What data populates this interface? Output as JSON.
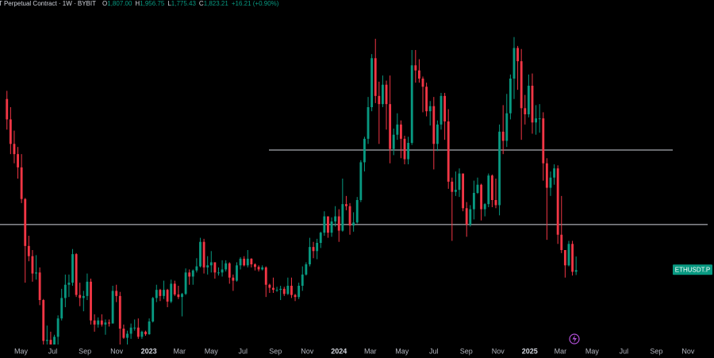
{
  "chart_data": {
    "type": "candlestick",
    "title": "T Perpetual Contract · 1W · BYBIT",
    "legend_items": [
      {
        "key": "O",
        "label": "1,807.00"
      },
      {
        "key": "H",
        "label": "1,956.75"
      },
      {
        "key": "L",
        "label": "1,775.43"
      },
      {
        "key": "C",
        "label": "1,823.21"
      }
    ],
    "change_label": "+16.21 (+0.90%)",
    "symbol_label": "ETHUSDT.P",
    "up_color": "#089981",
    "down_color": "#f23645",
    "xlim": [
      -1.9,
      193.8
    ],
    "xticks": [
      {
        "value": 3.86,
        "label": "May"
      },
      {
        "value": 12.57,
        "label": "Jul"
      },
      {
        "value": 21.4,
        "label": "Sep"
      },
      {
        "value": 30.1,
        "label": "Nov"
      },
      {
        "value": 38.9,
        "label": "2023"
      },
      {
        "value": 47.3,
        "label": "Mar"
      },
      {
        "value": 56,
        "label": "May"
      },
      {
        "value": 64.7,
        "label": "Jul"
      },
      {
        "value": 73.6,
        "label": "Sep"
      },
      {
        "value": 82.3,
        "label": "Nov"
      },
      {
        "value": 91,
        "label": "2024"
      },
      {
        "value": 99.6,
        "label": "Mar"
      },
      {
        "value": 108.3,
        "label": "May"
      },
      {
        "value": 117,
        "label": "Jul"
      },
      {
        "value": 125.9,
        "label": "Sep"
      },
      {
        "value": 134.6,
        "label": "Nov"
      },
      {
        "value": 143.3,
        "label": "2025"
      },
      {
        "value": 151.7,
        "label": "Mar"
      },
      {
        "value": 160.4,
        "label": "May"
      },
      {
        "value": 169.1,
        "label": "Jul"
      },
      {
        "value": 178,
        "label": "Sep"
      },
      {
        "value": 186.7,
        "label": "Nov"
      }
    ],
    "ylim": [
      1110,
      4470
    ],
    "hlines": [
      3000,
      2270
    ],
    "open": [
      3500,
      3300,
      3060,
      2960,
      2830,
      2520,
      2060,
      1960,
      1790,
      1800,
      1530,
      1130,
      1140,
      1070,
      1170,
      1350,
      1550,
      1680,
      1700,
      1980,
      1580,
      1550,
      1570,
      1710,
      1330,
      1290,
      1330,
      1290,
      1310,
      1300,
      1620,
      1570,
      1250,
      1160,
      1200,
      1260,
      1260,
      1170,
      1220,
      1195,
      1320,
      1550,
      1630,
      1570,
      1630,
      1515,
      1690,
      1585,
      1560,
      1590,
      1800,
      1760,
      1820,
      1860,
      2100,
      1850,
      1870,
      1900,
      1800,
      1800,
      1830,
      1890,
      1750,
      1720,
      1870,
      1935,
      1870,
      1935,
      1880,
      1855,
      1830,
      1850,
      1680,
      1650,
      1630,
      1630,
      1640,
      1590,
      1670,
      1580,
      1560,
      1670,
      1780,
      1880,
      2050,
      2010,
      2090,
      2190,
      2350,
      2190,
      2300,
      2350,
      2210,
      2470,
      2450,
      2260,
      2290,
      2510,
      2880,
      3110,
      3420,
      3900,
      3530,
      3450,
      3640,
      3450,
      3010,
      3150,
      3250,
      3110,
      2910,
      3070,
      3830,
      3780,
      3700,
      3620,
      3380,
      3430,
      3060,
      3250,
      3530,
      3280,
      2690,
      2590,
      2610,
      2770,
      2430,
      2270,
      2420,
      2580,
      2660,
      2420,
      2470,
      2750,
      2510,
      2460,
      3180,
      3090,
      3360,
      3700,
      4000,
      3870,
      3410,
      3350,
      3630,
      3270,
      3310,
      3310,
      2870,
      2630,
      2730,
      2820,
      2170,
      2020,
      1870,
      2080,
      1807
    ],
    "high": [
      3580,
      3420,
      3190,
      3030,
      2960,
      2530,
      2160,
      2020,
      1970,
      1850,
      1540,
      1280,
      1220,
      1190,
      1380,
      1640,
      1780,
      1780,
      2030,
      1990,
      1700,
      1620,
      1790,
      1740,
      1390,
      1360,
      1390,
      1340,
      1340,
      1670,
      1680,
      1610,
      1290,
      1230,
      1300,
      1340,
      1350,
      1230,
      1230,
      1350,
      1560,
      1680,
      1640,
      1720,
      1640,
      1730,
      1720,
      1670,
      1600,
      1840,
      1830,
      1830,
      1940,
      2140,
      2130,
      1960,
      2010,
      1900,
      1850,
      1920,
      1920,
      1900,
      1780,
      1900,
      1950,
      1960,
      2020,
      1940,
      1890,
      1870,
      1870,
      1860,
      1690,
      1750,
      1660,
      1670,
      1660,
      1750,
      1750,
      1590,
      1700,
      1860,
      1900,
      2140,
      2100,
      2130,
      2200,
      2400,
      2350,
      2340,
      2450,
      2420,
      2720,
      2550,
      2480,
      2390,
      2540,
      2900,
      3130,
      3520,
      3940,
      4090,
      3670,
      3730,
      3680,
      3730,
      3210,
      3360,
      3290,
      3140,
      3130,
      3980,
      3980,
      3890,
      3720,
      3660,
      3480,
      3520,
      3290,
      3560,
      3560,
      3400,
      2730,
      2790,
      2820,
      2770,
      2490,
      2460,
      2700,
      2730,
      2670,
      2480,
      2770,
      2760,
      2720,
      3250,
      3440,
      3550,
      3740,
      4107,
      4020,
      3990,
      3540,
      3740,
      3750,
      3440,
      3450,
      3370,
      2920,
      2790,
      2860,
      2850,
      2550,
      2020,
      2110,
      2110,
      1956.75
    ],
    "low": [
      3200,
      2960,
      2870,
      2720,
      2480,
      1700,
      1910,
      1710,
      1730,
      1480,
      880,
      1030,
      1000,
      1020,
      1080,
      1330,
      1460,
      1560,
      1670,
      1560,
      1470,
      1420,
      1530,
      1290,
      1220,
      1260,
      1270,
      1190,
      1270,
      1300,
      1510,
      1070,
      1150,
      1080,
      1150,
      1230,
      1150,
      1150,
      1180,
      1190,
      1310,
      1510,
      1520,
      1540,
      1460,
      1500,
      1570,
      1540,
      1370,
      1580,
      1680,
      1680,
      1800,
      1850,
      1790,
      1780,
      1800,
      1740,
      1770,
      1760,
      1810,
      1690,
      1620,
      1710,
      1830,
      1860,
      1850,
      1850,
      1820,
      1810,
      1820,
      1560,
      1600,
      1600,
      1610,
      1530,
      1570,
      1580,
      1550,
      1520,
      1540,
      1620,
      1770,
      1860,
      1940,
      1930,
      2040,
      2160,
      2140,
      2150,
      2250,
      2100,
      2200,
      2410,
      2170,
      2200,
      2280,
      2490,
      2790,
      3060,
      3380,
      3460,
      3060,
      3420,
      3200,
      2870,
      2950,
      3100,
      2920,
      2860,
      2860,
      3050,
      3660,
      3660,
      3370,
      3330,
      3240,
      2810,
      2990,
      3200,
      3100,
      2620,
      2110,
      2550,
      2540,
      2400,
      2150,
      2250,
      2320,
      2570,
      2310,
      2350,
      2440,
      2440,
      2430,
      2360,
      2960,
      3030,
      3300,
      3500,
      3590,
      3100,
      3250,
      3320,
      3160,
      3150,
      3170,
      2700,
      2120,
      2550,
      2660,
      2080,
      1990,
      1750,
      1860,
      1770,
      1775.43
    ],
    "close": [
      3300,
      3060,
      2960,
      2830,
      2520,
      2060,
      1960,
      1790,
      1800,
      1530,
      1130,
      1140,
      1070,
      1170,
      1350,
      1550,
      1680,
      1700,
      1980,
      1580,
      1550,
      1570,
      1710,
      1330,
      1290,
      1330,
      1290,
      1310,
      1300,
      1620,
      1570,
      1250,
      1160,
      1200,
      1260,
      1260,
      1170,
      1220,
      1195,
      1320,
      1550,
      1630,
      1570,
      1630,
      1515,
      1690,
      1585,
      1560,
      1590,
      1800,
      1760,
      1820,
      1860,
      2100,
      1850,
      1870,
      1900,
      1800,
      1800,
      1830,
      1890,
      1750,
      1720,
      1870,
      1935,
      1870,
      1935,
      1880,
      1855,
      1830,
      1850,
      1680,
      1650,
      1630,
      1630,
      1640,
      1590,
      1670,
      1580,
      1560,
      1670,
      1780,
      1880,
      2050,
      2010,
      2090,
      2190,
      2350,
      2190,
      2300,
      2350,
      2210,
      2470,
      2450,
      2260,
      2290,
      2510,
      2880,
      3110,
      3420,
      3900,
      3530,
      3450,
      3640,
      3450,
      3010,
      3150,
      3250,
      3110,
      2910,
      3070,
      3830,
      3780,
      3700,
      3620,
      3380,
      3430,
      3060,
      3250,
      3530,
      3280,
      2690,
      2590,
      2610,
      2770,
      2430,
      2270,
      2420,
      2580,
      2660,
      2420,
      2470,
      2750,
      2510,
      2460,
      3180,
      3090,
      3360,
      3700,
      4000,
      3870,
      3410,
      3350,
      3630,
      3270,
      3310,
      3310,
      2870,
      2630,
      2730,
      2820,
      2170,
      2020,
      1870,
      2080,
      1807,
      1823.21
    ]
  }
}
